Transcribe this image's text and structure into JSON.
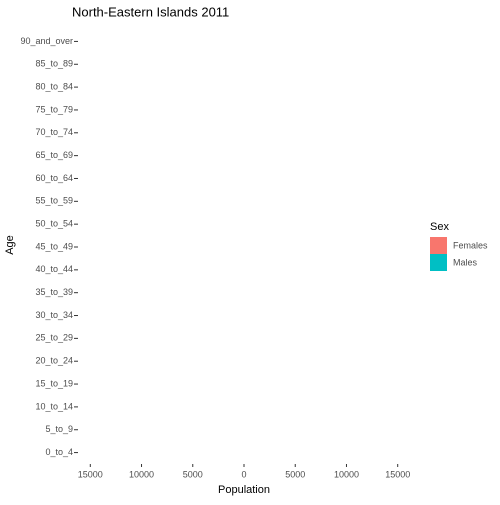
{
  "chart_data": {
    "type": "pyramid",
    "title": "North-Eastern Islands  2011",
    "x_label": "Population",
    "y_label": "Age",
    "legend_title": "Sex",
    "categories": [
      "0_to_4",
      "5_to_9",
      "10_to_14",
      "15_to_19",
      "20_to_24",
      "25_to_29",
      "30_to_34",
      "35_to_39",
      "40_to_44",
      "45_to_49",
      "50_to_54",
      "55_to_59",
      "60_to_64",
      "65_to_69",
      "70_to_74",
      "75_to_79",
      "80_to_84",
      "85_to_89",
      "90_and_over"
    ],
    "series": [
      {
        "name": "Females",
        "color": "#F8766D",
        "values": [
          0,
          0,
          0,
          0,
          0,
          0,
          0,
          0,
          0,
          0,
          0,
          0,
          0,
          0,
          0,
          0,
          0,
          0,
          0
        ]
      },
      {
        "name": "Males",
        "color": "#00BFC4",
        "values": [
          0,
          0,
          0,
          0,
          0,
          0,
          0,
          0,
          0,
          0,
          0,
          0,
          0,
          0,
          0,
          0,
          0,
          0,
          0
        ]
      }
    ],
    "xlim": [
      -16200,
      16200
    ],
    "xticks": [
      {
        "value": -15000,
        "label": "15000"
      },
      {
        "value": -10000,
        "label": "10000"
      },
      {
        "value": -5000,
        "label": "5000"
      },
      0,
      5000,
      10000,
      15000
    ],
    "legend": "right"
  }
}
